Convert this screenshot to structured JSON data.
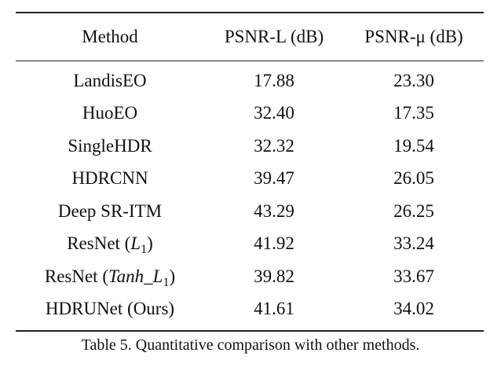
{
  "table": {
    "headers": [
      "Method",
      "PSNR-L (dB)",
      "PSNR-μ (dB)"
    ],
    "rows": [
      {
        "method": "LandisEO",
        "psnr_l": "17.88",
        "psnr_mu": "23.30"
      },
      {
        "method": "HuoEO",
        "psnr_l": "32.40",
        "psnr_mu": "17.35"
      },
      {
        "method": "SingleHDR",
        "psnr_l": "32.32",
        "psnr_mu": "19.54"
      },
      {
        "method": "HDRCNN",
        "psnr_l": "39.47",
        "psnr_mu": "26.05"
      },
      {
        "method": "Deep SR-ITM",
        "psnr_l": "43.29",
        "psnr_mu": "26.25"
      },
      {
        "method_prefix": "ResNet (",
        "method_math": "L",
        "method_sub": "1",
        "method_suffix": ")",
        "psnr_l": "41.92",
        "psnr_mu": "33.24"
      },
      {
        "method_prefix": "ResNet (",
        "method_math": "Tanh_L",
        "method_sub": "1",
        "method_suffix": ")",
        "psnr_l": "39.82",
        "psnr_mu": "33.67"
      },
      {
        "method": "HDRUNet (Ours)",
        "psnr_l": "41.61",
        "psnr_mu": "34.02"
      }
    ]
  },
  "caption": "Table 5. Quantitative comparison with other methods."
}
